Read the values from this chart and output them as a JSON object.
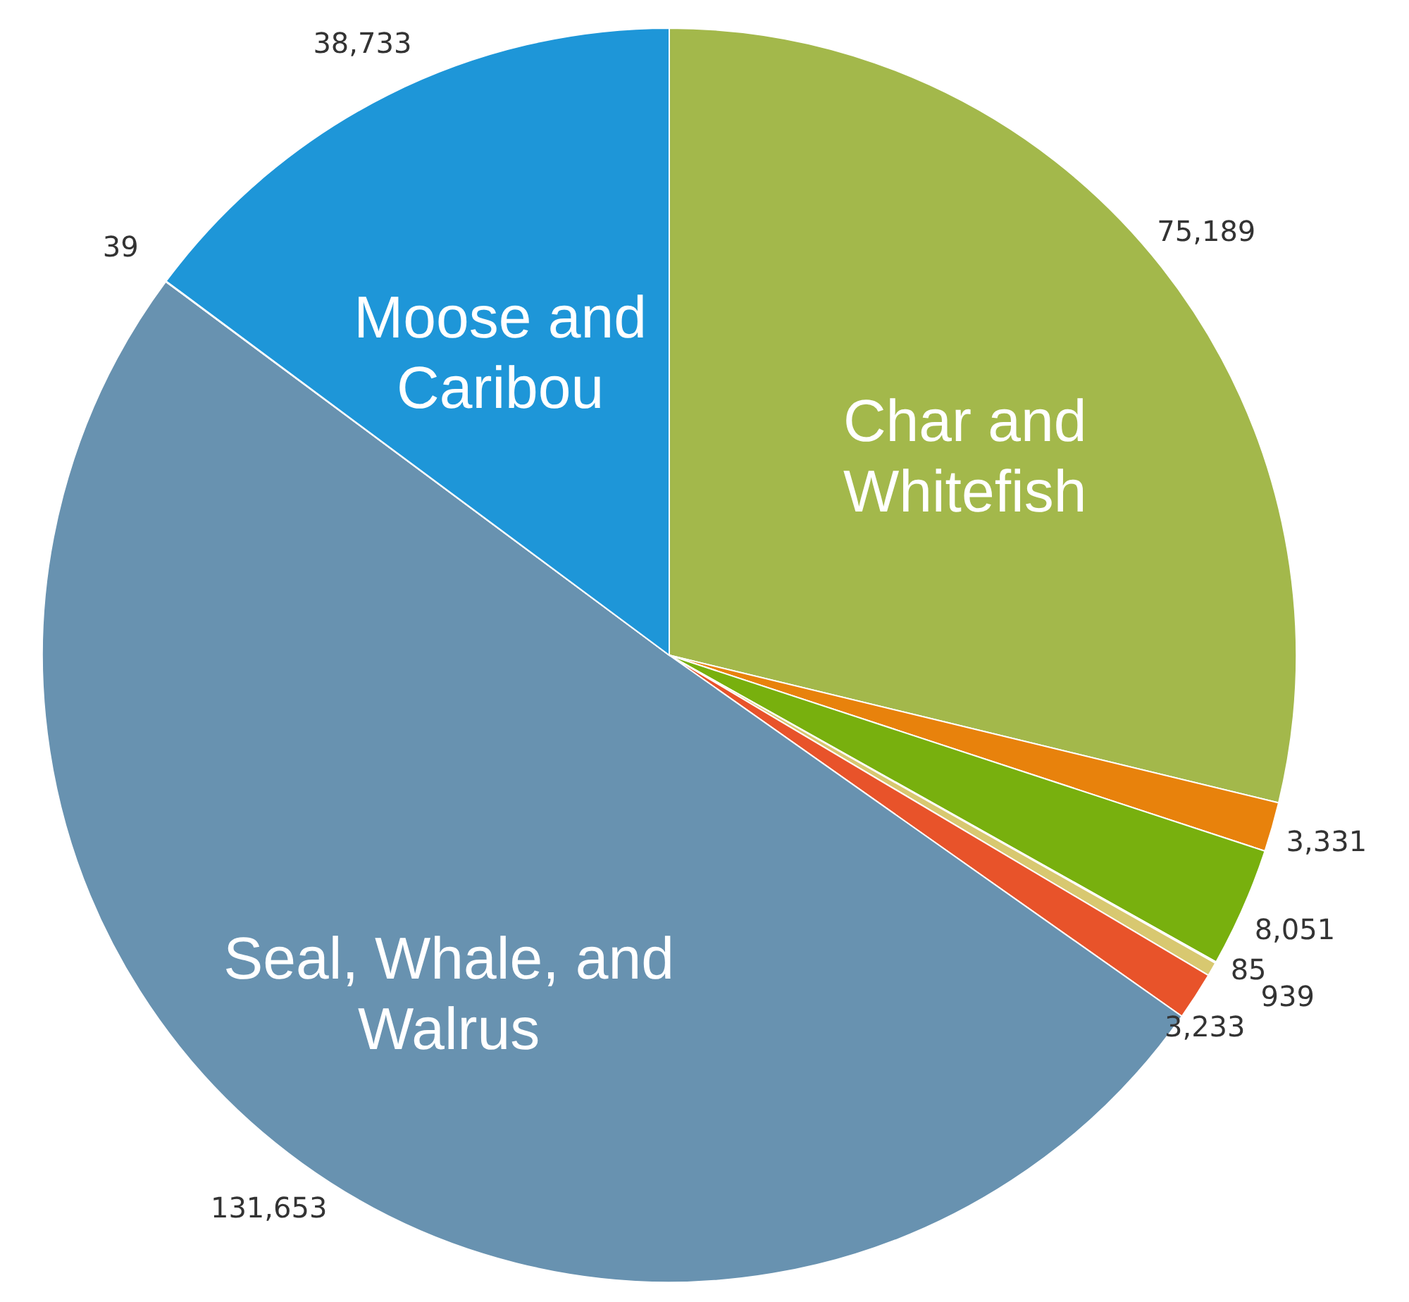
{
  "chart_data": {
    "type": "pie",
    "categories": [
      "Char and Whitefish",
      null,
      null,
      null,
      null,
      null,
      "Seal, Whale, and Walrus",
      null,
      "Moose and Caribou"
    ],
    "values": [
      75189,
      3331,
      8051,
      85,
      939,
      3233,
      131653,
      39,
      38733
    ],
    "value_labels": [
      "75,189",
      "3,331",
      "8,051",
      "85",
      "939",
      "3,233",
      "131,653",
      "39",
      "38,733"
    ],
    "colors": [
      "#a3b84b",
      "#e8820c",
      "#78b00e",
      "#e4eca0",
      "#d8c870",
      "#e8532a",
      "#6892b0",
      "#9aa4ae",
      "#1e96d8"
    ]
  }
}
